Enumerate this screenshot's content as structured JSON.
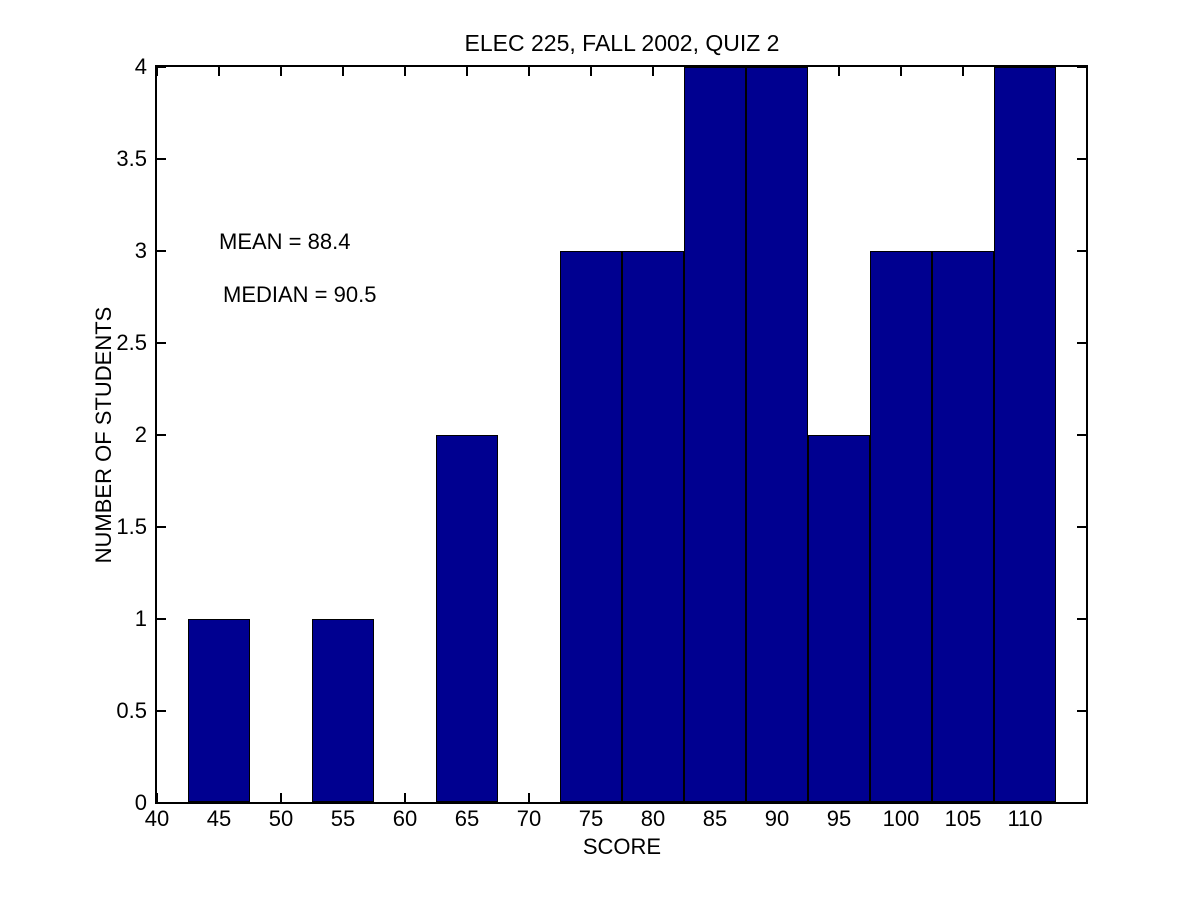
{
  "window": {
    "background": "#ffffff"
  },
  "chart_data": {
    "type": "bar",
    "subtype": "histogram",
    "title": "ELEC 225, FALL 2002, QUIZ 2",
    "xlabel": "SCORE",
    "ylabel": "NUMBER OF STUDENTS",
    "xlim": [
      40,
      115
    ],
    "ylim": [
      0,
      4
    ],
    "bin_width": 5,
    "bin_centers": [
      45,
      55,
      65,
      75,
      80,
      85,
      90,
      95,
      100,
      105,
      110
    ],
    "values": [
      1,
      1,
      2,
      3,
      3,
      4,
      4,
      2,
      3,
      3,
      4
    ],
    "x_ticks": [
      40,
      45,
      50,
      55,
      60,
      65,
      70,
      75,
      80,
      85,
      90,
      95,
      100,
      105,
      110
    ],
    "y_ticks": [
      0,
      0.5,
      1,
      1.5,
      2,
      2.5,
      3,
      3.5,
      4
    ],
    "y_tick_labels": [
      "0",
      "0.5",
      "1",
      "1.5",
      "2",
      "2.5",
      "3",
      "3.5",
      "4"
    ],
    "bar_color": "#000090",
    "bar_edge_color": "#000000",
    "axis_color": "#000000",
    "grid": false,
    "annotations": [
      {
        "text": "MEAN = 88.4",
        "x": 45.0,
        "y": 3.05
      },
      {
        "text": "MEDIAN = 90.5",
        "x": 45.3,
        "y": 2.76
      }
    ]
  }
}
